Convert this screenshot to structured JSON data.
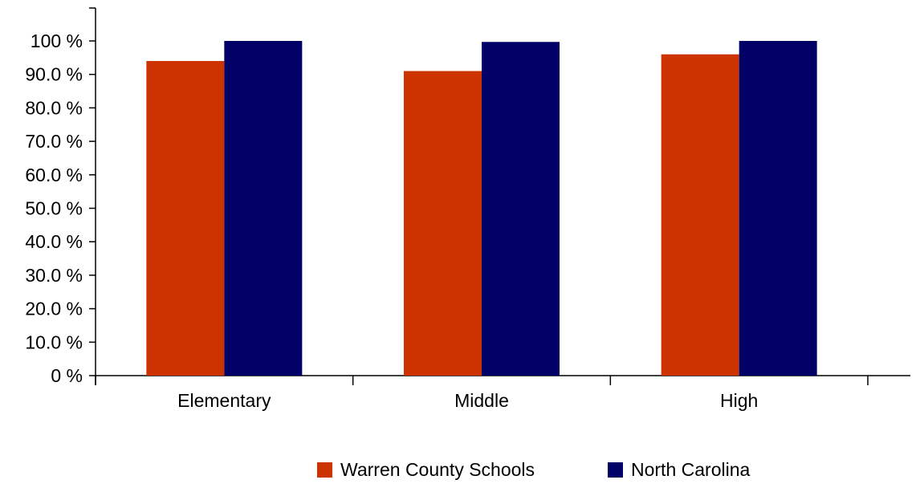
{
  "chart_data": {
    "type": "bar",
    "title": "",
    "xlabel": "",
    "ylabel": "",
    "ylim": [
      0,
      110
    ],
    "y_ticks": [
      "0 %",
      "10.0 %",
      "20.0 %",
      "30.0 %",
      "40.0 %",
      "50.0 %",
      "60.0 %",
      "70.0 %",
      "80.0 %",
      "90.0 %",
      "100 %"
    ],
    "y_tick_values": [
      0,
      10,
      20,
      30,
      40,
      50,
      60,
      70,
      80,
      90,
      100
    ],
    "categories": [
      "Elementary",
      "Middle",
      "High"
    ],
    "series": [
      {
        "name": "Warren County Schools",
        "color": "#cc3300",
        "values": [
          94,
          91,
          96
        ]
      },
      {
        "name": "North Carolina",
        "color": "#000066",
        "values": [
          100,
          99.7,
          100
        ]
      }
    ],
    "grid": false,
    "legend_position": "bottom-right"
  }
}
